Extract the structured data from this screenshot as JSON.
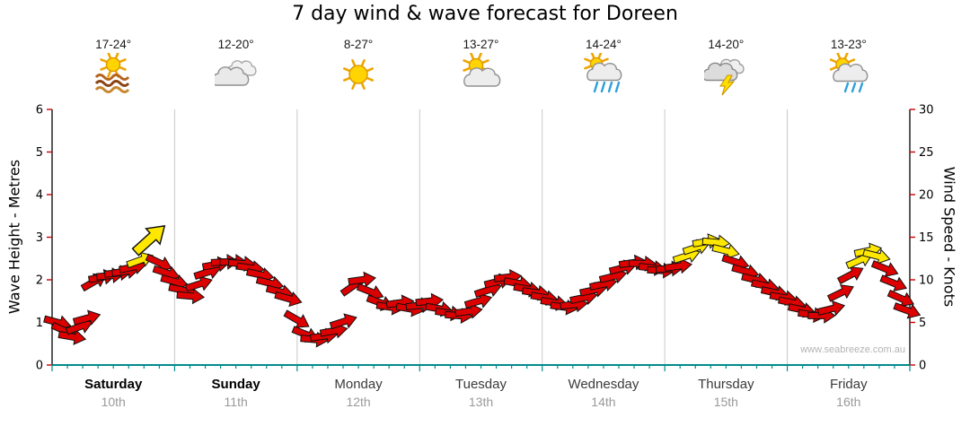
{
  "title": "7 day wind & wave forecast for Doreen",
  "chart_data": {
    "type": "wind-arrow-series",
    "title": "7 day wind & wave forecast for Doreen",
    "left_axis": {
      "label": "Wave Height - Metres",
      "min": 0,
      "max": 6,
      "ticks": [
        0,
        1,
        2,
        3,
        4,
        5,
        6
      ]
    },
    "right_axis": {
      "label": "Wind Speed - Knots",
      "min": 0,
      "max": 30,
      "ticks": [
        0,
        5,
        10,
        15,
        20,
        25,
        30
      ]
    },
    "legend": "none",
    "grid": "vertical day boundaries only",
    "days": [
      {
        "name": "Saturday",
        "date": "10th",
        "temp": "17-24°",
        "icon": "sun-haze",
        "bold": true
      },
      {
        "name": "Sunday",
        "date": "11th",
        "temp": "12-20°",
        "icon": "cloudy",
        "bold": true
      },
      {
        "name": "Monday",
        "date": "12th",
        "temp": "8-27°",
        "icon": "sunny",
        "bold": false
      },
      {
        "name": "Tuesday",
        "date": "13th",
        "temp": "13-27°",
        "icon": "partly-cloudy",
        "bold": false
      },
      {
        "name": "Wednesday",
        "date": "14th",
        "temp": "14-24°",
        "icon": "showers",
        "bold": false
      },
      {
        "name": "Thursday",
        "date": "15th",
        "temp": "14-20°",
        "icon": "storm",
        "bold": false
      },
      {
        "name": "Friday",
        "date": "16th",
        "temp": "13-23°",
        "icon": "light-showers",
        "bold": false
      }
    ],
    "series_units": "knots",
    "scale_note": "shared scale: 1 metre wave = 5 knots; points are [t_days, knots, arrow_dir_deg, flag] flag 0=red 1=yellow(strong) 2=yellow large peak arrow",
    "strong_threshold_knots": 12.5,
    "arrow_colors": {
      "normal": "#dd0000",
      "strong": "#ffe800"
    },
    "points": [
      [
        0.045,
        5.0,
        15,
        0
      ],
      [
        0.105,
        4.0,
        25,
        0
      ],
      [
        0.165,
        3.3,
        10,
        0
      ],
      [
        0.225,
        4.5,
        -20,
        0
      ],
      [
        0.285,
        5.5,
        -15,
        0
      ],
      [
        0.345,
        9.8,
        -30,
        0
      ],
      [
        0.41,
        10.3,
        -10,
        0
      ],
      [
        0.475,
        10.5,
        -5,
        0
      ],
      [
        0.54,
        10.8,
        -5,
        0
      ],
      [
        0.6,
        11.0,
        -8,
        0
      ],
      [
        0.66,
        11.5,
        -12,
        0
      ],
      [
        0.72,
        12.3,
        -20,
        1
      ],
      [
        0.8,
        14.8,
        -42,
        2
      ],
      [
        0.875,
        12.0,
        25,
        0
      ],
      [
        0.935,
        10.8,
        18,
        0
      ],
      [
        1.0,
        9.8,
        15,
        0
      ],
      [
        1.065,
        8.8,
        12,
        0
      ],
      [
        1.13,
        8.1,
        5,
        0
      ],
      [
        1.2,
        9.5,
        -18,
        0
      ],
      [
        1.27,
        10.9,
        -18,
        0
      ],
      [
        1.34,
        11.8,
        -10,
        0
      ],
      [
        1.41,
        12.1,
        -3,
        0
      ],
      [
        1.48,
        12.1,
        0,
        0
      ],
      [
        1.55,
        11.9,
        4,
        0
      ],
      [
        1.62,
        11.4,
        8,
        0
      ],
      [
        1.7,
        10.6,
        12,
        0
      ],
      [
        1.78,
        9.6,
        14,
        0
      ],
      [
        1.86,
        8.6,
        14,
        0
      ],
      [
        1.93,
        7.8,
        16,
        0
      ],
      [
        2.0,
        5.3,
        30,
        0
      ],
      [
        2.07,
        3.6,
        22,
        0
      ],
      [
        2.14,
        3.0,
        5,
        0
      ],
      [
        2.22,
        3.4,
        -8,
        0
      ],
      [
        2.3,
        4.0,
        -10,
        0
      ],
      [
        2.38,
        5.1,
        -18,
        0
      ],
      [
        2.46,
        9.3,
        -35,
        0
      ],
      [
        2.53,
        10.0,
        -8,
        0
      ],
      [
        2.6,
        8.6,
        22,
        0
      ],
      [
        2.68,
        7.3,
        20,
        0
      ],
      [
        2.76,
        6.8,
        8,
        0
      ],
      [
        2.84,
        7.3,
        -8,
        0
      ],
      [
        2.92,
        6.6,
        10,
        0
      ],
      [
        3.0,
        7.0,
        -6,
        0
      ],
      [
        3.08,
        7.5,
        -6,
        0
      ],
      [
        3.16,
        6.6,
        10,
        0
      ],
      [
        3.24,
        6.1,
        8,
        0
      ],
      [
        3.32,
        5.8,
        4,
        0
      ],
      [
        3.4,
        6.3,
        -8,
        0
      ],
      [
        3.48,
        7.5,
        -16,
        0
      ],
      [
        3.56,
        8.8,
        -18,
        0
      ],
      [
        3.64,
        9.8,
        -14,
        0
      ],
      [
        3.72,
        10.3,
        -6,
        0
      ],
      [
        3.8,
        9.6,
        10,
        0
      ],
      [
        3.88,
        8.9,
        10,
        0
      ],
      [
        3.95,
        8.5,
        8,
        0
      ],
      [
        4.02,
        7.9,
        10,
        0
      ],
      [
        4.1,
        7.3,
        10,
        0
      ],
      [
        4.18,
        6.8,
        8,
        0
      ],
      [
        4.26,
        7.1,
        -6,
        0
      ],
      [
        4.34,
        7.9,
        -12,
        0
      ],
      [
        4.42,
        8.8,
        -12,
        0
      ],
      [
        4.5,
        9.5,
        -12,
        0
      ],
      [
        4.58,
        10.4,
        -14,
        0
      ],
      [
        4.66,
        11.4,
        -14,
        0
      ],
      [
        4.74,
        12.0,
        -8,
        0
      ],
      [
        4.82,
        11.9,
        2,
        0
      ],
      [
        4.9,
        11.4,
        6,
        0
      ],
      [
        4.97,
        11.1,
        3,
        0
      ],
      [
        5.04,
        11.3,
        -3,
        0
      ],
      [
        5.11,
        11.6,
        -8,
        0
      ],
      [
        5.18,
        12.8,
        -18,
        1
      ],
      [
        5.26,
        13.8,
        -18,
        1
      ],
      [
        5.34,
        14.5,
        -10,
        1
      ],
      [
        5.42,
        14.4,
        5,
        1
      ],
      [
        5.5,
        13.4,
        14,
        1
      ],
      [
        5.58,
        12.1,
        18,
        0
      ],
      [
        5.66,
        11.0,
        16,
        0
      ],
      [
        5.74,
        10.0,
        14,
        0
      ],
      [
        5.82,
        9.3,
        12,
        0
      ],
      [
        5.9,
        8.5,
        12,
        0
      ],
      [
        5.97,
        7.9,
        10,
        0
      ],
      [
        6.04,
        7.3,
        12,
        0
      ],
      [
        6.12,
        6.5,
        12,
        0
      ],
      [
        6.2,
        5.9,
        8,
        0
      ],
      [
        6.28,
        5.8,
        0,
        0
      ],
      [
        6.36,
        6.6,
        -14,
        0
      ],
      [
        6.44,
        8.5,
        -26,
        0
      ],
      [
        6.52,
        10.6,
        -28,
        0
      ],
      [
        6.59,
        12.3,
        -24,
        1
      ],
      [
        6.66,
        13.4,
        -12,
        1
      ],
      [
        6.73,
        12.8,
        14,
        1
      ],
      [
        6.8,
        11.3,
        22,
        0
      ],
      [
        6.87,
        9.6,
        22,
        0
      ],
      [
        6.93,
        7.8,
        24,
        0
      ],
      [
        6.98,
        6.4,
        20,
        0
      ]
    ],
    "watermark": "www.seabreeze.com.au"
  }
}
